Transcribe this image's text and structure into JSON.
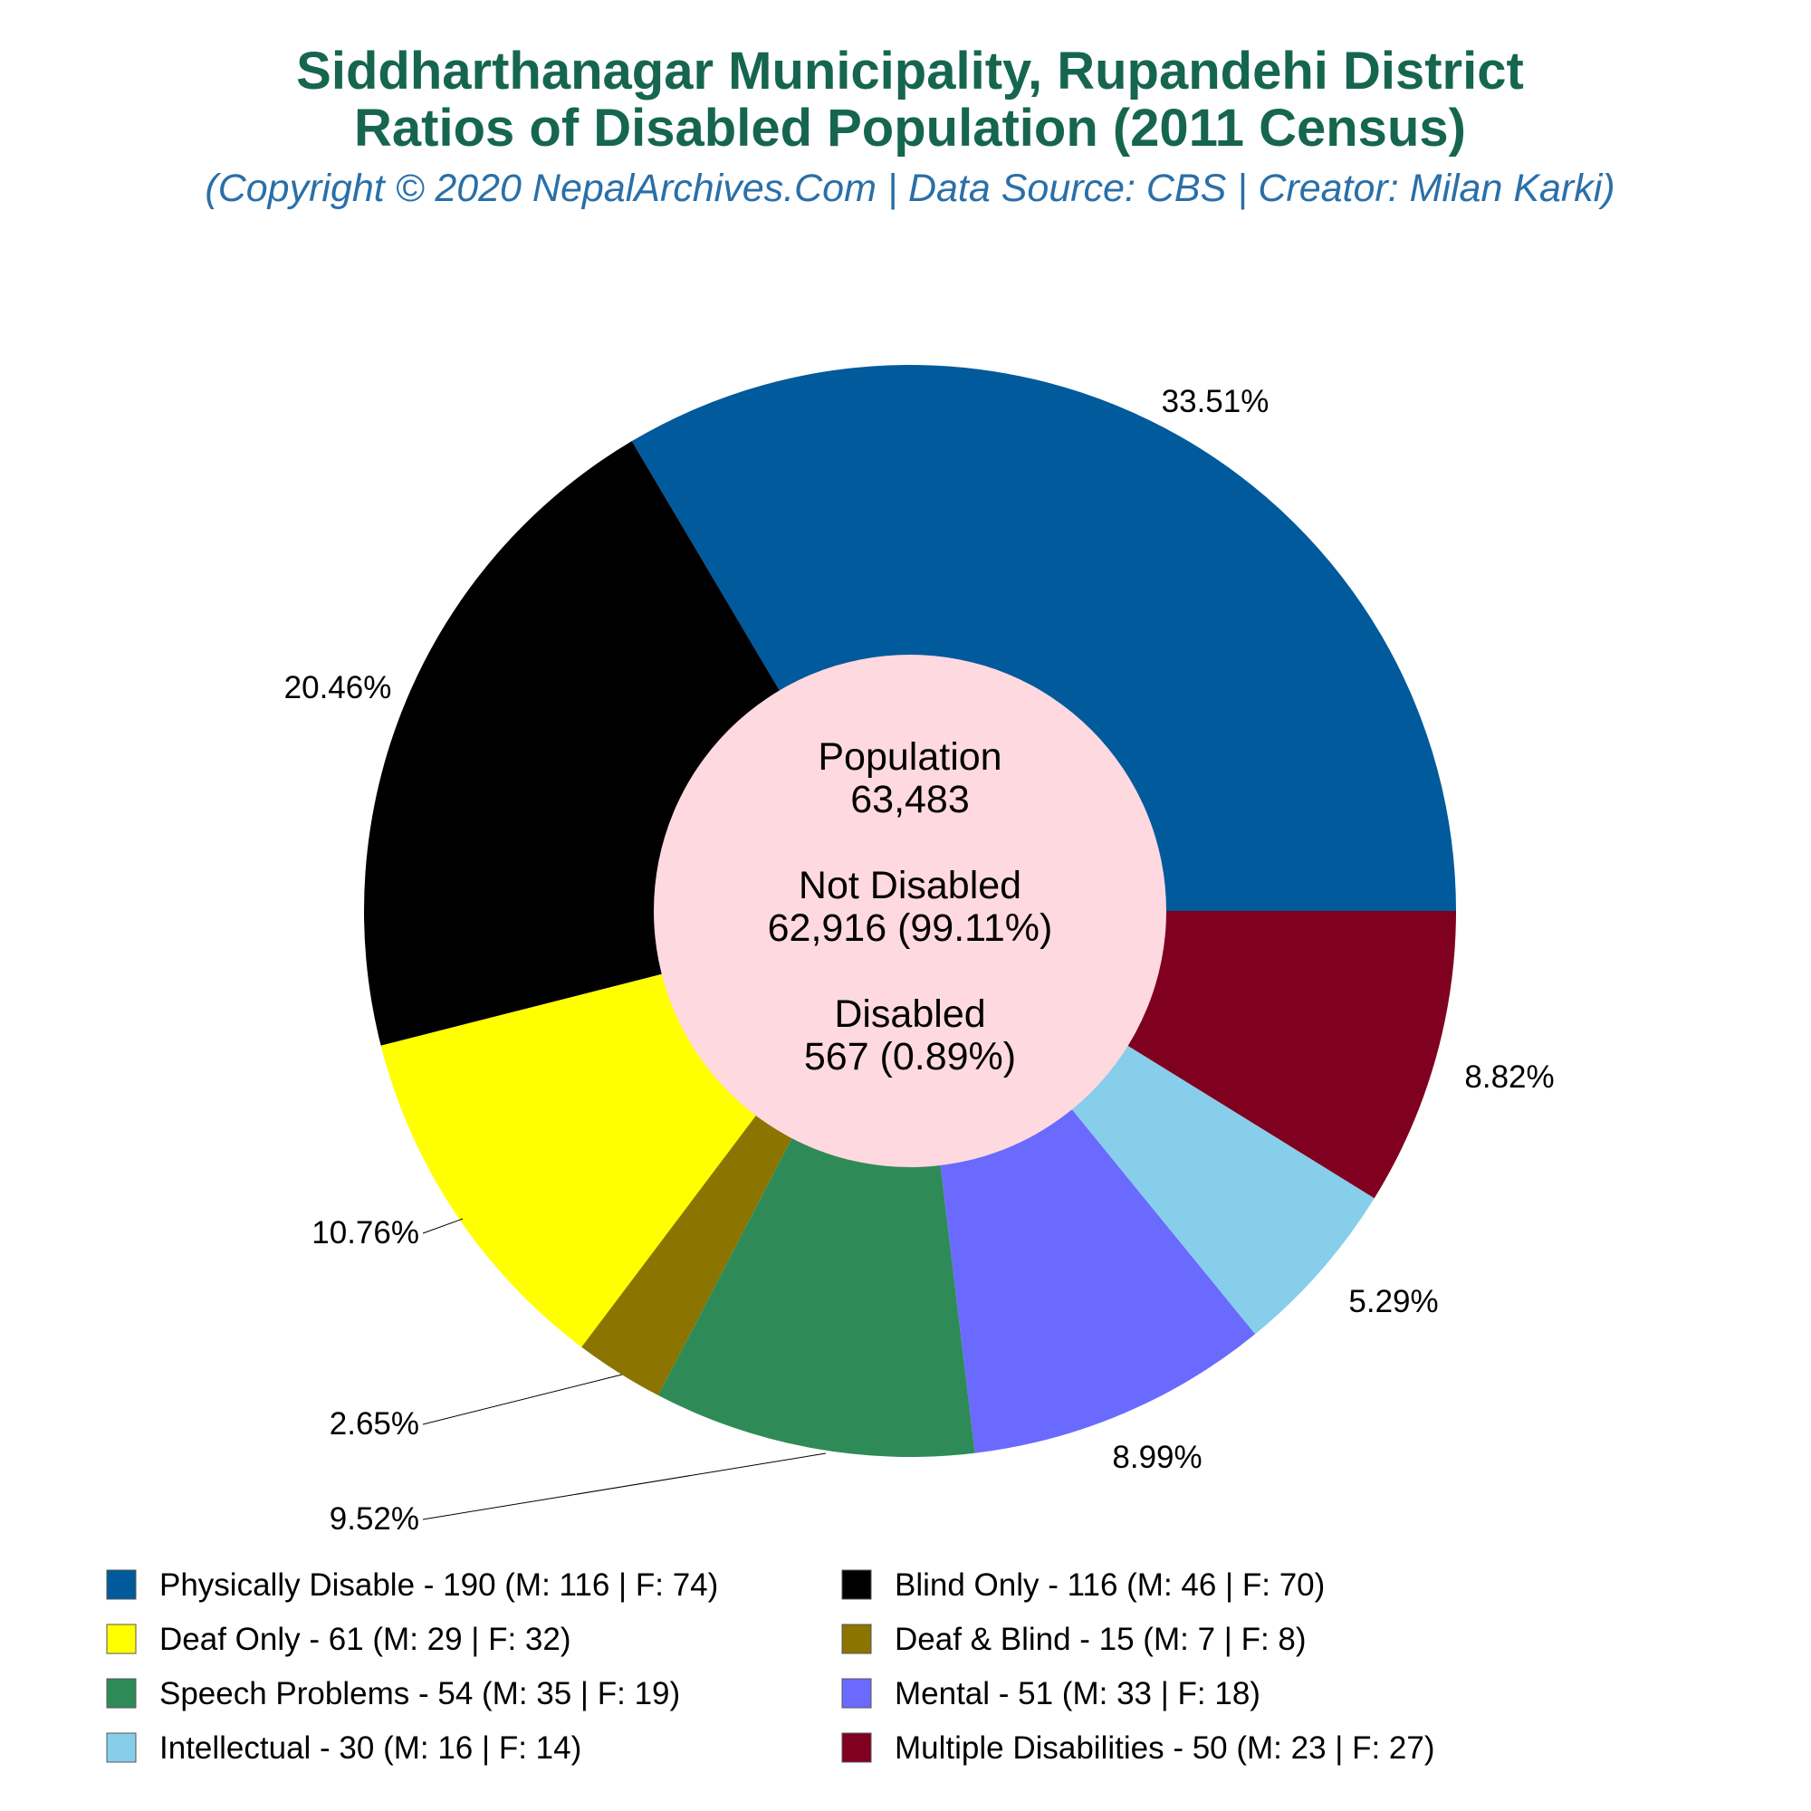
{
  "chart_data": {
    "type": "pie",
    "title_lines": [
      "Siddharthanagar Municipality, Rupandehi District",
      "Ratios of Disabled Population (2011 Census)"
    ],
    "subtitle": "(Copyright © 2020 NepalArchives.Com | Data Source: CBS | Creator: Milan Karki)",
    "center": {
      "population_label": "Population",
      "population_value": "63,483",
      "not_disabled_label": "Not Disabled",
      "not_disabled_value": "62,916 (99.11%)",
      "disabled_label": "Disabled",
      "disabled_value": "567 (0.89%)"
    },
    "legend_placement": "bottom",
    "slices": [
      {
        "label": "Physically Disable - 190 (M: 116 | F: 74)",
        "value": 190,
        "percent": "33.51%",
        "color": "#005a9c"
      },
      {
        "label": "Blind Only - 116 (M: 46 | F: 70)",
        "value": 116,
        "percent": "20.46%",
        "color": "#000000"
      },
      {
        "label": "Deaf Only - 61 (M: 29 | F: 32)",
        "value": 61,
        "percent": "10.76%",
        "color": "#ffff00"
      },
      {
        "label": "Deaf & Blind - 15 (M: 7 | F: 8)",
        "value": 15,
        "percent": "2.65%",
        "color": "#8b7500"
      },
      {
        "label": "Speech Problems - 54 (M: 35 | F: 19)",
        "value": 54,
        "percent": "9.52%",
        "color": "#2e8b57"
      },
      {
        "label": "Mental - 51 (M: 33 | F: 18)",
        "value": 51,
        "percent": "8.99%",
        "color": "#6a6aff"
      },
      {
        "label": "Intellectual - 30 (M: 16 | F: 14)",
        "value": 30,
        "percent": "5.29%",
        "color": "#87ceeb"
      },
      {
        "label": "Multiple Disabilities - 50 (M: 23 | F: 27)",
        "value": 50,
        "percent": "8.82%",
        "color": "#800020"
      }
    ],
    "center_color": "#ffd9e0"
  }
}
